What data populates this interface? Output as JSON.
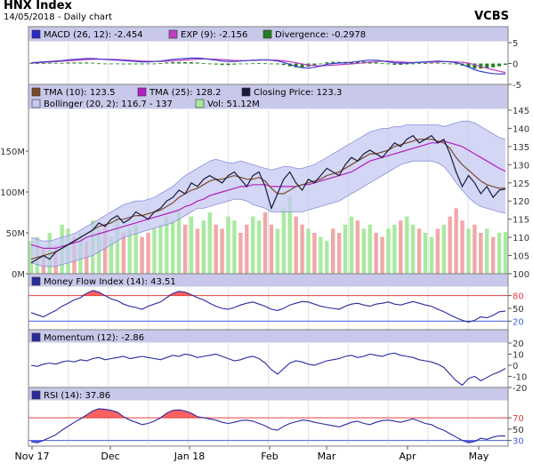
{
  "header": {
    "title": "HNX Index",
    "subtitle": "14/05/2018 - Daily chart",
    "brand": "VCBS"
  },
  "colors": {
    "panel_header_bg": "#c8c8ea",
    "panel_bg": "#ffffff",
    "grid": "#e0e0e0",
    "price_line": "#1a1a3a",
    "tma10": "#7a4a2a",
    "tma25": "#b020c0",
    "bollinger_fill": "#c4c8f2",
    "bollinger_line": "#8a90d8",
    "vol_up": "#a8eaa0",
    "vol_down": "#f0a8a8",
    "macd": "#3a3acc",
    "exp": "#c040c0",
    "divergence": "#208020",
    "indicator_line": "#2a2aa0",
    "overbought_fill": "#ff6060",
    "oversold_fill": "#6060ff",
    "upper_ref": "#e04040",
    "lower_ref": "#4060e0"
  },
  "chart_data": [
    {
      "type": "bar",
      "panel": "macd",
      "legend": [
        {
          "label": "MACD (26, 12): -2.454",
          "color": "#2a2acc"
        },
        {
          "label": "EXP (9): -2.156",
          "color": "#c040c0"
        },
        {
          "label": "Divergence: -0.2978",
          "color": "#208020"
        }
      ],
      "ylim": [
        -5,
        5
      ],
      "yticks": [
        -5,
        0,
        5
      ],
      "macd": [
        0.2,
        0.3,
        0.4,
        0.5,
        0.6,
        0.7,
        0.9,
        1.0,
        1.1,
        1.2,
        1.2,
        1.1,
        1.0,
        0.9,
        0.8,
        0.7,
        0.6,
        0.5,
        0.4,
        0.4,
        0.5,
        0.6,
        0.8,
        1.0,
        1.1,
        1.2,
        1.3,
        1.3,
        1.2,
        1.0,
        0.8,
        0.6,
        0.5,
        0.5,
        0.6,
        0.7,
        0.8,
        0.9,
        0.9,
        0.8,
        0.6,
        0.3,
        -0.2,
        -0.7,
        -1.0,
        -1.1,
        -0.9,
        -0.6,
        -0.2,
        0.0,
        0.1,
        0.2,
        0.3,
        0.5,
        0.7,
        0.8,
        0.8,
        0.6,
        0.4,
        0.2,
        0.1,
        0.1,
        0.2,
        0.3,
        0.4,
        0.5,
        0.6,
        0.5,
        0.4,
        0.2,
        -0.2,
        -0.8,
        -1.5,
        -1.9,
        -2.2,
        -2.4,
        -2.5,
        -2.45
      ],
      "exp": [
        0.1,
        0.2,
        0.3,
        0.35,
        0.45,
        0.55,
        0.65,
        0.75,
        0.85,
        0.95,
        1.0,
        1.05,
        1.05,
        1.0,
        0.95,
        0.9,
        0.8,
        0.7,
        0.6,
        0.55,
        0.5,
        0.5,
        0.55,
        0.65,
        0.75,
        0.85,
        0.95,
        1.05,
        1.1,
        1.1,
        1.05,
        0.95,
        0.85,
        0.75,
        0.7,
        0.7,
        0.75,
        0.8,
        0.85,
        0.85,
        0.8,
        0.65,
        0.45,
        0.2,
        -0.1,
        -0.35,
        -0.5,
        -0.55,
        -0.5,
        -0.4,
        -0.3,
        -0.2,
        -0.1,
        0.05,
        0.2,
        0.35,
        0.5,
        0.55,
        0.55,
        0.5,
        0.4,
        0.3,
        0.25,
        0.25,
        0.3,
        0.35,
        0.4,
        0.45,
        0.45,
        0.4,
        0.3,
        0.1,
        -0.3,
        -0.7,
        -1.1,
        -1.5,
        -1.85,
        -2.156
      ],
      "divergence": [
        0.1,
        0.1,
        0.1,
        0.15,
        0.15,
        0.15,
        0.25,
        0.25,
        0.25,
        0.25,
        0.2,
        0.05,
        -0.05,
        -0.1,
        -0.15,
        -0.2,
        -0.2,
        -0.2,
        -0.2,
        -0.15,
        0.0,
        0.1,
        0.25,
        0.35,
        0.35,
        0.35,
        0.35,
        0.25,
        0.1,
        -0.1,
        -0.25,
        -0.35,
        -0.35,
        -0.25,
        -0.1,
        0.0,
        0.05,
        0.1,
        0.05,
        -0.05,
        -0.2,
        -0.35,
        -0.65,
        -0.9,
        -0.9,
        -0.75,
        -0.4,
        -0.05,
        0.3,
        0.4,
        0.4,
        0.4,
        0.4,
        0.45,
        0.5,
        0.45,
        0.3,
        0.05,
        -0.15,
        -0.3,
        -0.3,
        -0.2,
        -0.05,
        0.05,
        0.1,
        0.15,
        0.2,
        0.05,
        -0.05,
        -0.2,
        -0.5,
        -0.9,
        -1.2,
        -1.2,
        -1.1,
        -0.9,
        -0.65,
        -0.3
      ]
    },
    {
      "type": "line",
      "panel": "price",
      "legend": [
        {
          "label": "TMA (10): 123.5",
          "color": "#7a4a2a"
        },
        {
          "label": "TMA (25): 128.2",
          "color": "#b020c0"
        },
        {
          "label": "Closing Price: 123.3",
          "color": "#1a1a3a"
        },
        {
          "label": "Bollinger (20, 2): 116.7 - 137",
          "color": "#c4c8f2"
        },
        {
          "label": "Vol: 51.12M",
          "color": "#a8eaa0"
        }
      ],
      "ylim": [
        100,
        145
      ],
      "yticks": [
        100,
        105,
        110,
        115,
        120,
        125,
        130,
        135,
        140,
        145
      ],
      "vol_ticks": [
        "0M",
        "50M",
        "100M",
        "150M"
      ],
      "vol_ylim": [
        0,
        200
      ],
      "x_labels": [
        "Nov 17",
        "Dec",
        "Jan 18",
        "Feb",
        "Mar",
        "Apr",
        "May"
      ],
      "close": [
        103,
        104,
        105,
        104,
        106,
        107,
        108,
        109,
        110,
        111,
        112,
        114,
        113,
        115,
        116,
        114,
        115,
        117,
        116,
        115,
        117,
        118,
        120,
        121,
        123,
        122,
        125,
        124,
        126,
        127,
        126,
        125,
        127,
        128,
        126,
        124,
        127,
        128,
        124,
        118,
        122,
        126,
        128,
        125,
        123,
        126,
        125,
        127,
        129,
        128,
        127,
        130,
        132,
        131,
        133,
        134,
        133,
        132,
        134,
        136,
        135,
        137,
        138,
        136,
        137,
        138,
        136,
        137,
        133,
        128,
        124,
        127,
        125,
        122,
        124,
        121,
        123,
        123.3
      ],
      "tma10": [
        104,
        104.5,
        105,
        105.5,
        106,
        107,
        108,
        109,
        110,
        111,
        112,
        113,
        113.5,
        114,
        115,
        115,
        115.5,
        116,
        116,
        116.5,
        117,
        117.5,
        118.5,
        119.5,
        121,
        122,
        123,
        123.5,
        124.5,
        125.5,
        126,
        126,
        126.5,
        127,
        126.5,
        126,
        126,
        126.5,
        125.5,
        123.5,
        122,
        122,
        123,
        124,
        124.5,
        125,
        125.5,
        126,
        127,
        127.5,
        128,
        129,
        130,
        131,
        132,
        133,
        133,
        133.5,
        134,
        135,
        135.5,
        136,
        136.5,
        137,
        137,
        137,
        136.5,
        136,
        134.5,
        132,
        130,
        128.5,
        127,
        125.5,
        124.5,
        124,
        123.5,
        123.5
      ],
      "tma25": [
        108,
        107.5,
        107,
        107,
        107,
        107.5,
        108,
        108.5,
        109,
        110,
        110.5,
        111,
        111.5,
        112,
        112.5,
        113,
        113.5,
        114,
        114.5,
        115,
        115.5,
        116,
        116.5,
        117,
        117.5,
        118.5,
        119,
        120,
        120.5,
        121.5,
        122,
        122.5,
        123,
        123.5,
        124,
        124,
        124.5,
        124.5,
        124.5,
        124,
        124,
        124,
        124,
        124,
        124.5,
        124.5,
        125,
        125.5,
        126,
        126.5,
        127,
        127.5,
        128,
        129,
        130,
        131,
        131.5,
        132,
        132.5,
        133,
        133.5,
        134,
        134.5,
        135,
        135.5,
        136,
        136,
        136.5,
        136,
        135.5,
        135,
        134,
        133,
        132,
        131,
        130,
        129,
        128.2
      ],
      "boll_upper": [
        110,
        109.5,
        109,
        109,
        109.5,
        110,
        110.5,
        111,
        112,
        113,
        114,
        115,
        116,
        117,
        118,
        119,
        119.5,
        120,
        120,
        120.5,
        121,
        122,
        123,
        124,
        125.5,
        127,
        128,
        129,
        130,
        131,
        131.5,
        131,
        130.5,
        130.5,
        131,
        130.5,
        130,
        129.5,
        129,
        128.5,
        129,
        129.5,
        129.5,
        129,
        129,
        129.5,
        130,
        131,
        132,
        133,
        134,
        135,
        136,
        137,
        138,
        139,
        139.5,
        140,
        140,
        140.5,
        140.5,
        141,
        141,
        141,
        141,
        141,
        141,
        140.5,
        141,
        141.5,
        142,
        142,
        141.5,
        140.5,
        139.5,
        138.5,
        137.5,
        137
      ],
      "boll_lower": [
        103,
        102.5,
        102,
        102,
        102,
        102.5,
        103,
        103.5,
        104,
        104.5,
        105,
        106,
        107,
        108,
        109,
        110,
        110.5,
        111,
        111.5,
        112,
        112.5,
        113,
        113.5,
        114,
        115,
        116,
        117,
        118,
        118,
        118.5,
        119,
        119.5,
        120,
        120.5,
        120.5,
        120,
        119,
        118.5,
        118,
        117,
        117,
        117,
        117,
        117,
        117,
        117.5,
        118,
        118.5,
        119,
        119.5,
        120,
        121,
        122,
        123,
        124,
        125,
        126,
        127,
        128,
        129,
        130,
        130.5,
        131,
        131,
        131,
        131,
        130.5,
        129.5,
        127.5,
        125,
        123,
        121,
        119.5,
        118.5,
        118,
        117.5,
        117,
        116.7
      ],
      "volume": [
        40,
        45,
        30,
        50,
        35,
        60,
        55,
        45,
        50,
        40,
        65,
        55,
        60,
        45,
        70,
        50,
        55,
        60,
        45,
        50,
        55,
        60,
        70,
        65,
        75,
        60,
        70,
        55,
        65,
        75,
        60,
        55,
        70,
        65,
        50,
        60,
        70,
        65,
        75,
        60,
        55,
        80,
        95,
        70,
        60,
        55,
        50,
        45,
        40,
        55,
        50,
        60,
        70,
        65,
        55,
        60,
        50,
        45,
        55,
        60,
        65,
        70,
        60,
        55,
        50,
        45,
        55,
        60,
        70,
        80,
        65,
        55,
        60,
        50,
        55,
        45,
        50,
        51
      ],
      "volume_up": [
        1,
        1,
        0,
        1,
        0,
        1,
        1,
        0,
        1,
        0,
        1,
        1,
        0,
        1,
        1,
        0,
        1,
        1,
        0,
        0,
        1,
        1,
        1,
        1,
        1,
        0,
        1,
        0,
        1,
        1,
        0,
        0,
        1,
        1,
        0,
        0,
        1,
        1,
        0,
        0,
        1,
        1,
        1,
        0,
        0,
        1,
        0,
        1,
        1,
        0,
        0,
        1,
        1,
        0,
        1,
        1,
        0,
        0,
        1,
        1,
        0,
        1,
        1,
        0,
        1,
        1,
        0,
        1,
        0,
        0,
        0,
        1,
        0,
        0,
        1,
        0,
        1,
        1
      ]
    },
    {
      "type": "line",
      "panel": "mfi",
      "legend": [
        {
          "label": "Money Flow Index (14): 43.51",
          "color": "#2a2aa0"
        }
      ],
      "ylim": [
        0,
        100
      ],
      "yticks": [
        20,
        50,
        80
      ],
      "ref_upper": 80,
      "ref_lower": 20,
      "values": [
        40,
        35,
        30,
        38,
        45,
        55,
        62,
        70,
        75,
        85,
        92,
        88,
        80,
        72,
        68,
        60,
        55,
        52,
        48,
        55,
        60,
        65,
        75,
        85,
        90,
        88,
        82,
        75,
        70,
        62,
        55,
        50,
        48,
        52,
        58,
        62,
        65,
        60,
        55,
        48,
        45,
        50,
        58,
        62,
        66,
        65,
        60,
        55,
        52,
        50,
        48,
        55,
        60,
        62,
        58,
        55,
        60,
        62,
        65,
        60,
        58,
        62,
        66,
        62,
        58,
        55,
        48,
        42,
        35,
        28,
        22,
        18,
        22,
        30,
        28,
        34,
        42,
        43.5
      ]
    },
    {
      "type": "line",
      "panel": "momentum",
      "legend": [
        {
          "label": "Momentum (12): -2.86",
          "color": "#2a2aa0"
        }
      ],
      "ylim": [
        -20,
        20
      ],
      "yticks": [
        -20,
        -10,
        0,
        10,
        20
      ],
      "values": [
        0,
        -1,
        1,
        2,
        1,
        3,
        4,
        3,
        5,
        4,
        6,
        7,
        5,
        6,
        7,
        8,
        6,
        7,
        8,
        7,
        6,
        5,
        7,
        9,
        8,
        10,
        9,
        7,
        8,
        9,
        10,
        8,
        6,
        4,
        5,
        7,
        8,
        6,
        2,
        -4,
        -8,
        -3,
        2,
        4,
        3,
        1,
        0,
        2,
        4,
        5,
        6,
        8,
        9,
        7,
        8,
        10,
        9,
        8,
        10,
        11,
        9,
        8,
        7,
        5,
        4,
        3,
        1,
        -2,
        -8,
        -14,
        -18,
        -12,
        -10,
        -14,
        -11,
        -8,
        -6,
        -2.86
      ]
    },
    {
      "type": "line",
      "panel": "rsi",
      "legend": [
        {
          "label": "RSI (14): 37.86",
          "color": "#2a2aa0"
        }
      ],
      "ylim": [
        20,
        100
      ],
      "yticks": [
        30,
        50,
        70
      ],
      "ref_upper": 70,
      "ref_lower": 30,
      "values": [
        28,
        26,
        30,
        35,
        40,
        48,
        55,
        62,
        68,
        75,
        82,
        86,
        85,
        83,
        80,
        72,
        66,
        62,
        58,
        60,
        64,
        70,
        78,
        83,
        84,
        82,
        78,
        72,
        70,
        68,
        66,
        62,
        60,
        62,
        65,
        66,
        64,
        60,
        56,
        50,
        48,
        55,
        60,
        63,
        66,
        65,
        62,
        60,
        58,
        56,
        54,
        58,
        62,
        64,
        60,
        58,
        62,
        65,
        66,
        64,
        62,
        65,
        68,
        64,
        60,
        58,
        52,
        48,
        42,
        36,
        30,
        26,
        28,
        34,
        32,
        36,
        38,
        37.86
      ]
    }
  ]
}
